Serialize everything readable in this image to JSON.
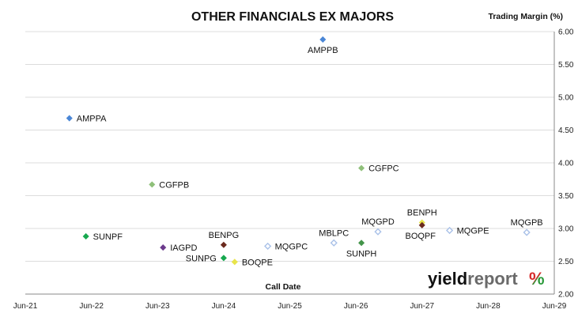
{
  "chart_data": {
    "type": "scatter",
    "title": "OTHER FINANCIALS EX MAJORS",
    "xlabel": "Call Date",
    "ylabel": "Trading Margin (%)",
    "x_ticks": [
      "Jun-21",
      "Jun-22",
      "Jun-23",
      "Jun-24",
      "Jun-25",
      "Jun-26",
      "Jun-27",
      "Jun-28",
      "Jun-29"
    ],
    "y_ticks": [
      "2.00",
      "2.50",
      "3.00",
      "3.50",
      "4.00",
      "4.50",
      "5.00",
      "5.50",
      "6.00"
    ],
    "xlim": [
      "2021-06",
      "2029-06"
    ],
    "ylim": [
      2.0,
      6.0
    ],
    "grid": "horizontal",
    "points": [
      {
        "label": "AMPPA",
        "x": "2022-02",
        "y": 4.68,
        "color": "#4a86d6",
        "filled": true,
        "label_pos": "right"
      },
      {
        "label": "AMPPB",
        "x": "2025-12",
        "y": 5.88,
        "color": "#4a86d6",
        "filled": true,
        "label_pos": "below"
      },
      {
        "label": "CGFPB",
        "x": "2023-05",
        "y": 3.67,
        "color": "#8fc07a",
        "filled": true,
        "label_pos": "right"
      },
      {
        "label": "CGFPC",
        "x": "2026-07",
        "y": 3.92,
        "color": "#8fc07a",
        "filled": true,
        "label_pos": "right"
      },
      {
        "label": "SUNPF",
        "x": "2022-05",
        "y": 2.88,
        "color": "#17a84f",
        "filled": true,
        "label_pos": "right"
      },
      {
        "label": "IAGPD",
        "x": "2023-07",
        "y": 2.71,
        "color": "#6b3a8c",
        "filled": true,
        "label_pos": "right"
      },
      {
        "label": "BENPG",
        "x": "2024-06",
        "y": 2.75,
        "color": "#6b2a1e",
        "filled": true,
        "label_pos": "above"
      },
      {
        "label": "SUNPG",
        "x": "2024-06",
        "y": 2.55,
        "color": "#17a84f",
        "filled": true,
        "label_pos": "left"
      },
      {
        "label": "BOQPE",
        "x": "2024-08",
        "y": 2.49,
        "color": "#e8e44a",
        "filled": true,
        "label_pos": "right"
      },
      {
        "label": "MQGPC",
        "x": "2025-02",
        "y": 2.73,
        "color": "#a9c1e8",
        "filled": false,
        "label_pos": "right"
      },
      {
        "label": "MBLPC",
        "x": "2026-02",
        "y": 2.78,
        "color": "#a9c1e8",
        "filled": false,
        "label_pos": "above"
      },
      {
        "label": "SUNPH",
        "x": "2026-07",
        "y": 2.78,
        "color": "#43944a",
        "filled": true,
        "label_pos": "below"
      },
      {
        "label": "MQGPD",
        "x": "2026-10",
        "y": 2.95,
        "color": "#a9c1e8",
        "filled": false,
        "label_pos": "above"
      },
      {
        "label": "BENPH",
        "x": "2027-06",
        "y": 3.09,
        "color": "#e8e44a",
        "filled": true,
        "label_pos": "above"
      },
      {
        "label": "BOQPF",
        "x": "2027-06",
        "y": 3.05,
        "color": "#6b2a1e",
        "filled": true,
        "label_pos": "below-left"
      },
      {
        "label": "MQGPE",
        "x": "2027-11",
        "y": 2.97,
        "color": "#a9c1e8",
        "filled": false,
        "label_pos": "right"
      },
      {
        "label": "MQGPB",
        "x": "2029-01",
        "y": 2.94,
        "color": "#a9c1e8",
        "filled": false,
        "label_pos": "above"
      }
    ]
  },
  "logo": {
    "text_light": "yield",
    "text_bold": "report",
    "symbol": "%",
    "symbol_colors": [
      "#d62a2a",
      "#2a9a3a"
    ]
  }
}
